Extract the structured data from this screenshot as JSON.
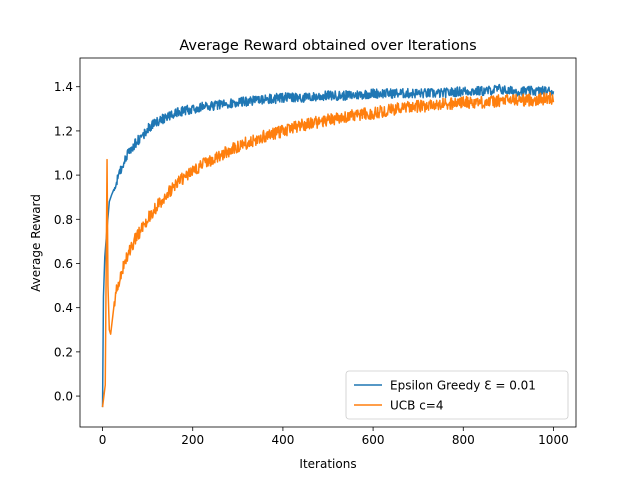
{
  "chart_data": {
    "type": "line",
    "title": "Average Reward obtained over Iterations",
    "xlabel": "Iterations",
    "ylabel": "Average Reward",
    "xlim": [
      -50,
      1050
    ],
    "ylim": [
      -0.14,
      1.53
    ],
    "xticks": [
      0,
      200,
      400,
      600,
      800,
      1000
    ],
    "xtick_labels": [
      "0",
      "200",
      "400",
      "600",
      "800",
      "1000"
    ],
    "yticks": [
      0.0,
      0.2,
      0.4,
      0.6,
      0.8,
      1.0,
      1.2,
      1.4
    ],
    "ytick_labels": [
      "0.0",
      "0.2",
      "0.4",
      "0.6",
      "0.8",
      "1.0",
      "1.2",
      "1.4"
    ],
    "grid": false,
    "legend_position": "lower-right",
    "series": [
      {
        "name": "Epsilon Greedy Ɛ = 0.01",
        "color": "#1f77b4",
        "x": [
          0,
          2,
          5,
          10,
          15,
          20,
          30,
          40,
          50,
          60,
          75,
          90,
          100,
          120,
          140,
          160,
          180,
          200,
          230,
          260,
          300,
          350,
          400,
          450,
          500,
          550,
          600,
          650,
          700,
          750,
          800,
          850,
          880,
          900,
          950,
          1000
        ],
        "values": [
          -0.05,
          0.45,
          0.63,
          0.76,
          0.88,
          0.91,
          0.96,
          1.02,
          1.07,
          1.11,
          1.15,
          1.18,
          1.21,
          1.24,
          1.26,
          1.28,
          1.29,
          1.3,
          1.31,
          1.32,
          1.33,
          1.34,
          1.35,
          1.35,
          1.36,
          1.36,
          1.37,
          1.37,
          1.37,
          1.37,
          1.38,
          1.38,
          1.39,
          1.38,
          1.38,
          1.38
        ]
      },
      {
        "name": "UCB c=4",
        "color": "#ff7f0e",
        "x": [
          0,
          3,
          6,
          10,
          12,
          15,
          18,
          22,
          26,
          30,
          40,
          50,
          60,
          75,
          100,
          125,
          150,
          175,
          200,
          250,
          300,
          350,
          400,
          450,
          500,
          550,
          600,
          650,
          700,
          750,
          800,
          850,
          900,
          950,
          1000
        ],
        "values": [
          -0.05,
          0.0,
          0.05,
          1.07,
          0.5,
          0.3,
          0.28,
          0.35,
          0.42,
          0.47,
          0.55,
          0.61,
          0.66,
          0.72,
          0.8,
          0.87,
          0.93,
          0.98,
          1.02,
          1.08,
          1.13,
          1.17,
          1.2,
          1.23,
          1.25,
          1.27,
          1.28,
          1.3,
          1.31,
          1.32,
          1.33,
          1.33,
          1.34,
          1.34,
          1.35
        ]
      }
    ]
  }
}
